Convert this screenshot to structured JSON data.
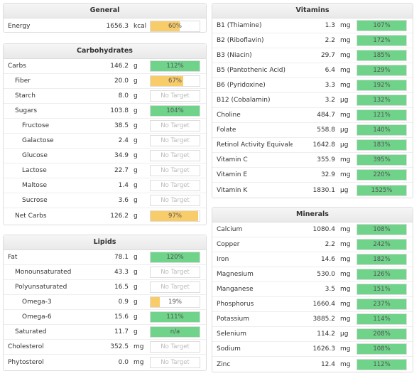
{
  "panels": [
    {
      "title": "General",
      "rows": [
        {
          "name": "Energy",
          "amount": "1656.3",
          "unit": "kcal",
          "target": "60%"
        }
      ]
    },
    {
      "title": "Carbohydrates",
      "rows": [
        {
          "name": "Carbs",
          "amount": "146.2",
          "unit": "g",
          "target": "112%",
          "children": [
            {
              "name": "Fiber",
              "amount": "20.0",
              "unit": "g",
              "target": "67%"
            },
            {
              "name": "Starch",
              "amount": "8.0",
              "unit": "g",
              "target": "No Target"
            },
            {
              "name": "Sugars",
              "amount": "103.8",
              "unit": "g",
              "target": "104%",
              "children": [
                {
                  "name": "Fructose",
                  "amount": "38.5",
                  "unit": "g",
                  "target": "No Target"
                },
                {
                  "name": "Galactose",
                  "amount": "2.4",
                  "unit": "g",
                  "target": "No Target"
                },
                {
                  "name": "Glucose",
                  "amount": "34.9",
                  "unit": "g",
                  "target": "No Target"
                },
                {
                  "name": "Lactose",
                  "amount": "22.7",
                  "unit": "g",
                  "target": "No Target"
                },
                {
                  "name": "Maltose",
                  "amount": "1.4",
                  "unit": "g",
                  "target": "No Target"
                },
                {
                  "name": "Sucrose",
                  "amount": "3.6",
                  "unit": "g",
                  "target": "No Target"
                }
              ]
            },
            {
              "name": "Net Carbs",
              "amount": "126.2",
              "unit": "g",
              "target": "97%"
            }
          ]
        }
      ]
    },
    {
      "title": "Lipids",
      "rows": [
        {
          "name": "Fat",
          "amount": "78.1",
          "unit": "g",
          "target": "120%",
          "children": [
            {
              "name": "Monounsaturated",
              "amount": "43.3",
              "unit": "g",
              "target": "No Target"
            },
            {
              "name": "Polyunsaturated",
              "amount": "16.5",
              "unit": "g",
              "target": "No Target",
              "children": [
                {
                  "name": "Omega-3",
                  "amount": "0.9",
                  "unit": "g",
                  "target": "19%"
                },
                {
                  "name": "Omega-6",
                  "amount": "15.6",
                  "unit": "g",
                  "target": "111%"
                }
              ]
            },
            {
              "name": "Saturated",
              "amount": "11.7",
              "unit": "g",
              "target": "n/a"
            }
          ]
        },
        {
          "name": "Cholesterol",
          "amount": "352.5",
          "unit": "mg",
          "target": "No Target"
        },
        {
          "name": "Phytosterol",
          "amount": "0.0",
          "unit": "mg",
          "target": "No Target"
        }
      ]
    },
    {
      "title": "Vitamins",
      "rows": [
        {
          "name": "B1 (Thiamine)",
          "amount": "1.3",
          "unit": "mg",
          "target": "107%"
        },
        {
          "name": "B2 (Riboflavin)",
          "amount": "2.2",
          "unit": "mg",
          "target": "172%"
        },
        {
          "name": "B3 (Niacin)",
          "amount": "29.7",
          "unit": "mg",
          "target": "185%"
        },
        {
          "name": "B5 (Pantothenic Acid)",
          "amount": "6.4",
          "unit": "mg",
          "target": "129%"
        },
        {
          "name": "B6 (Pyridoxine)",
          "amount": "3.3",
          "unit": "mg",
          "target": "192%"
        },
        {
          "name": "B12 (Cobalamin)",
          "amount": "3.2",
          "unit": "µg",
          "target": "132%"
        },
        {
          "name": "Choline",
          "amount": "484.7",
          "unit": "mg",
          "target": "121%"
        },
        {
          "name": "Folate",
          "amount": "558.8",
          "unit": "µg",
          "target": "140%"
        },
        {
          "name": "Retinol Activity Equivalent",
          "amount": "1642.8",
          "unit": "µg",
          "target": "183%"
        },
        {
          "name": "Vitamin C",
          "amount": "355.9",
          "unit": "mg",
          "target": "395%"
        },
        {
          "name": "Vitamin E",
          "amount": "32.9",
          "unit": "mg",
          "target": "220%"
        },
        {
          "name": "Vitamin K",
          "amount": "1830.1",
          "unit": "µg",
          "target": "1525%"
        }
      ]
    },
    {
      "title": "Minerals",
      "rows": [
        {
          "name": "Calcium",
          "amount": "1080.4",
          "unit": "mg",
          "target": "108%"
        },
        {
          "name": "Copper",
          "amount": "2.2",
          "unit": "mg",
          "target": "242%"
        },
        {
          "name": "Iron",
          "amount": "14.6",
          "unit": "mg",
          "target": "182%"
        },
        {
          "name": "Magnesium",
          "amount": "530.0",
          "unit": "mg",
          "target": "126%"
        },
        {
          "name": "Manganese",
          "amount": "3.5",
          "unit": "mg",
          "target": "151%"
        },
        {
          "name": "Phosphorus",
          "amount": "1660.4",
          "unit": "mg",
          "target": "237%"
        },
        {
          "name": "Potassium",
          "amount": "3885.2",
          "unit": "mg",
          "target": "114%"
        },
        {
          "name": "Selenium",
          "amount": "114.2",
          "unit": "µg",
          "target": "208%"
        },
        {
          "name": "Sodium",
          "amount": "1626.3",
          "unit": "mg",
          "target": "108%"
        },
        {
          "name": "Zinc",
          "amount": "12.4",
          "unit": "mg",
          "target": "112%"
        }
      ]
    }
  ]
}
